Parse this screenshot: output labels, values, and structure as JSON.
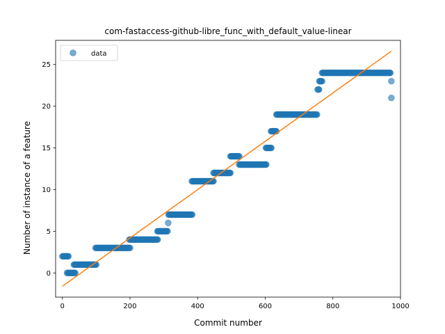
{
  "chart_data": {
    "type": "scatter",
    "title": "com-fastaccess-github-libre_func_with_default_value-linear",
    "xlabel": "Commit number",
    "ylabel": "Number of instance of a feature",
    "xlim": [
      -20,
      1000
    ],
    "ylim": [
      -2.9,
      27.9
    ],
    "xticks": [
      0,
      200,
      400,
      600,
      800,
      1000
    ],
    "yticks": [
      0,
      5,
      10,
      15,
      20,
      25
    ],
    "grid": false,
    "legend": {
      "position": "top-left"
    },
    "colors": {
      "data": "#1f77b4",
      "fit": "#ff7f0e"
    },
    "series": [
      {
        "name": "data",
        "kind": "scatter",
        "segments": [
          {
            "x_start": 0,
            "x_end": 18,
            "step": 2,
            "y": 2
          },
          {
            "x_start": 14,
            "x_end": 38,
            "step": 2,
            "y": 0
          },
          {
            "x_start": 34,
            "x_end": 100,
            "step": 2,
            "y": 1
          },
          {
            "x_start": 98,
            "x_end": 200,
            "step": 2,
            "y": 3
          },
          {
            "x_start": 198,
            "x_end": 283,
            "step": 2,
            "y": 4
          },
          {
            "x_start": 281,
            "x_end": 312,
            "step": 2,
            "y": 5
          },
          {
            "x_start": 313,
            "x_end": 313,
            "step": 1,
            "y": 6
          },
          {
            "x_start": 314,
            "x_end": 385,
            "step": 2,
            "y": 7
          },
          {
            "x_start": 383,
            "x_end": 447,
            "step": 2,
            "y": 11
          },
          {
            "x_start": 447,
            "x_end": 497,
            "step": 2,
            "y": 12
          },
          {
            "x_start": 497,
            "x_end": 523,
            "step": 2,
            "y": 14
          },
          {
            "x_start": 523,
            "x_end": 603,
            "step": 2,
            "y": 13
          },
          {
            "x_start": 602,
            "x_end": 618,
            "step": 2,
            "y": 15
          },
          {
            "x_start": 617,
            "x_end": 633,
            "step": 2,
            "y": 17
          },
          {
            "x_start": 633,
            "x_end": 754,
            "step": 2,
            "y": 19
          },
          {
            "x_start": 755,
            "x_end": 760,
            "step": 2,
            "y": 22
          },
          {
            "x_start": 760,
            "x_end": 768,
            "step": 2,
            "y": 23
          },
          {
            "x_start": 768,
            "x_end": 970,
            "step": 2,
            "y": 24
          },
          {
            "x_start": 973,
            "x_end": 973,
            "step": 1,
            "y": 23
          },
          {
            "x_start": 973,
            "x_end": 973,
            "step": 1,
            "y": 21
          }
        ]
      },
      {
        "name": "",
        "kind": "line",
        "x": [
          0,
          973
        ],
        "y": [
          -1.6,
          26.6
        ]
      }
    ]
  }
}
